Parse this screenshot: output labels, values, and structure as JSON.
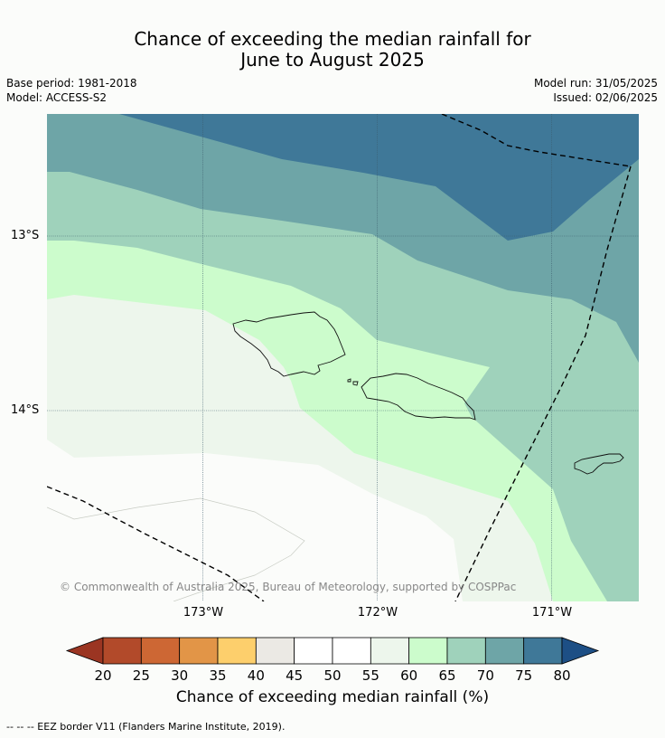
{
  "title_line1": "Chance of exceeding the median rainfall for",
  "title_line2": "June to August 2025",
  "base_period": "Base period: 1981-2018",
  "model": "Model: ACCESS-S2",
  "model_run": "Model run: 31/05/2025",
  "issued": "Issued: 02/06/2025",
  "copyright": "© Commonwealth of Australia 2025, Bureau of Meteorology, supported by COSPPac",
  "lon_labels": [
    "173°W",
    "172°W",
    "171°W"
  ],
  "lat_labels": [
    "13°S",
    "14°S"
  ],
  "colorbar": {
    "ticks": [
      "20",
      "25",
      "30",
      "35",
      "40",
      "45",
      "50",
      "55",
      "60",
      "65",
      "70",
      "75",
      "80"
    ],
    "colors": [
      "#b24a2a",
      "#cd6734",
      "#e29547",
      "#fdcf6c",
      "#ebe9e4",
      "#ffffff",
      "#ffffff",
      "#edf6ec",
      "#ccfccc",
      "#9fd2bb",
      "#6ea5a7",
      "#3f7898"
    ],
    "under_color": "#9b3522",
    "over_color": "#1d4f85",
    "label": "Chance of exceeding median rainfall (%)"
  },
  "map_colors": {
    "band_75_80": "#3f7898",
    "band_70_75": "#6ea5a7",
    "band_65_70": "#9fd2bb",
    "band_60_65": "#ccfccc",
    "band_55_60": "#edf6ec",
    "band_50_55": "#fbfcfa"
  },
  "footer": "--  --  -- EEZ border V11 (Flanders Marine Institute, 2019)."
}
